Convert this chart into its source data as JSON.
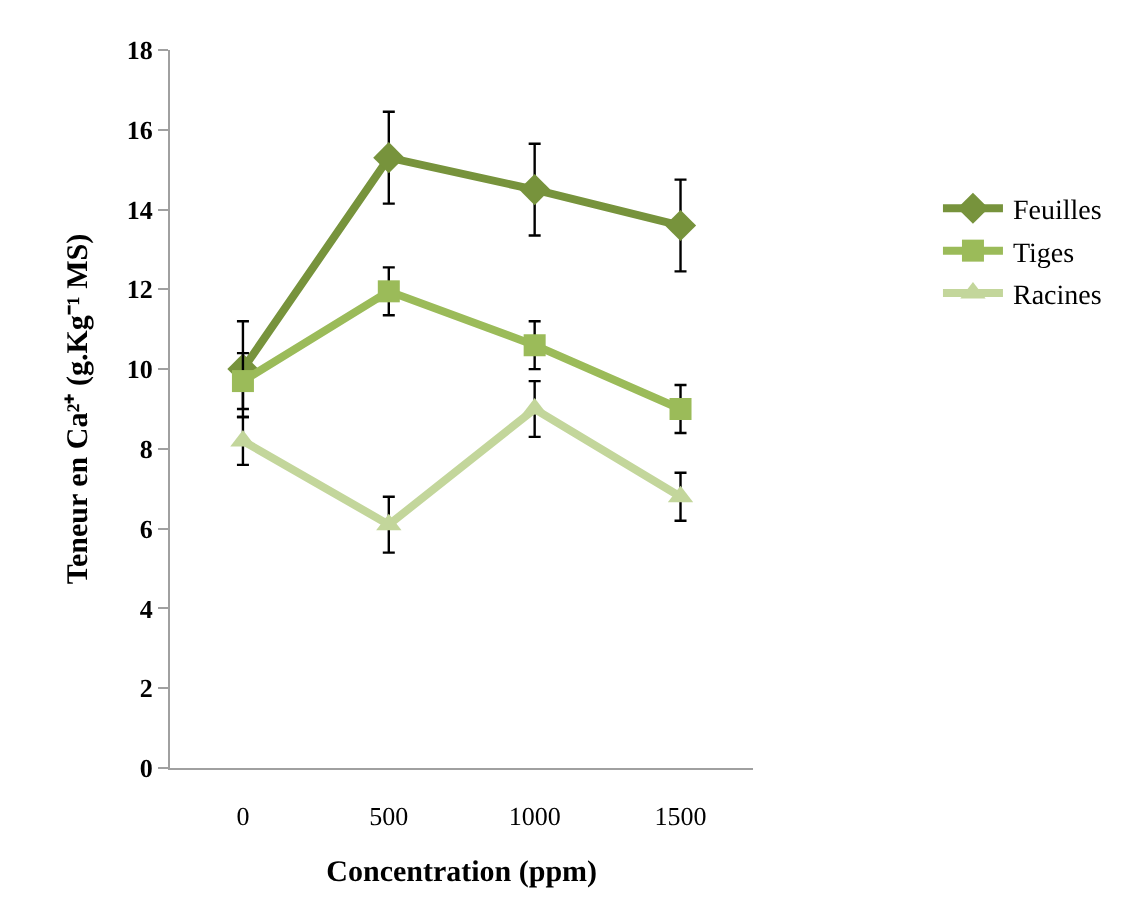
{
  "chart_data": {
    "type": "line",
    "xlabel": "Concentration (ppm)",
    "ylabel": "Teneur en Ca²⁺ (g.Kg⁻¹ MS)",
    "categories": [
      "0",
      "500",
      "1000",
      "1500"
    ],
    "series": [
      {
        "name": "Feuilles",
        "color": "#77933c",
        "marker": "diamond",
        "values": [
          10.0,
          15.3,
          14.5,
          13.6
        ],
        "errors": [
          1.2,
          1.15,
          1.15,
          1.15
        ]
      },
      {
        "name": "Tiges",
        "color": "#9bbb59",
        "marker": "square",
        "values": [
          9.7,
          11.95,
          10.6,
          9.0
        ],
        "errors": [
          0.7,
          0.6,
          0.6,
          0.6
        ]
      },
      {
        "name": "Racines",
        "color": "#c3d69b",
        "marker": "triangle",
        "values": [
          8.2,
          6.1,
          9.0,
          6.8
        ],
        "errors": [
          0.6,
          0.7,
          0.7,
          0.6
        ]
      }
    ],
    "ylim": [
      0,
      18
    ],
    "yticks": [
      0,
      2,
      4,
      6,
      8,
      10,
      12,
      14,
      16,
      18
    ],
    "legend": "right"
  }
}
